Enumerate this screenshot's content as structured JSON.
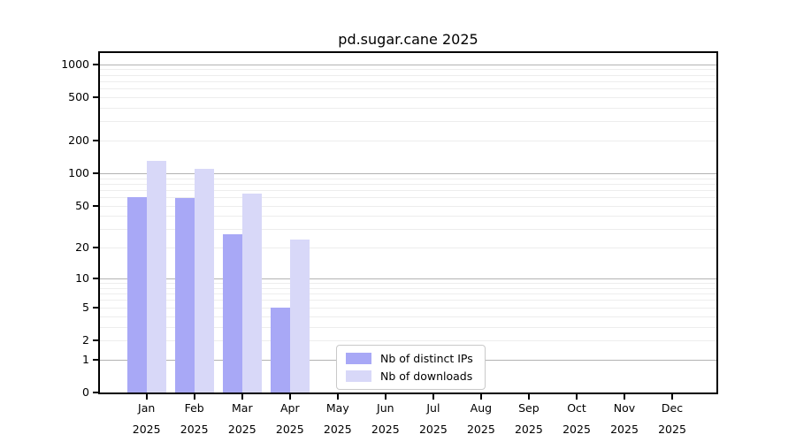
{
  "chart_data": {
    "type": "bar",
    "title": "pd.sugar.cane 2025",
    "xlabel": "",
    "ylabel": "",
    "x_categories": [
      "Jan",
      "Feb",
      "Mar",
      "Apr",
      "May",
      "Jun",
      "Jul",
      "Aug",
      "Sep",
      "Oct",
      "Nov",
      "Dec"
    ],
    "x_year": "2025",
    "series": [
      {
        "name": "Nb of distinct IPs",
        "color": "#a8a8f6",
        "values": [
          60,
          59,
          27,
          5,
          0,
          0,
          0,
          0,
          0,
          0,
          0,
          0
        ]
      },
      {
        "name": "Nb of downloads",
        "color": "#d8d8f8",
        "values": [
          130,
          110,
          65,
          24,
          0,
          0,
          0,
          0,
          0,
          0,
          0,
          0
        ]
      }
    ],
    "y_scale": "log10(1+x)",
    "y_ticks": [
      0,
      1,
      2,
      5,
      10,
      20,
      50,
      100,
      200,
      500,
      1000
    ],
    "y_max": 1265,
    "grid": true,
    "legend_position": "inside-bottom-center"
  }
}
